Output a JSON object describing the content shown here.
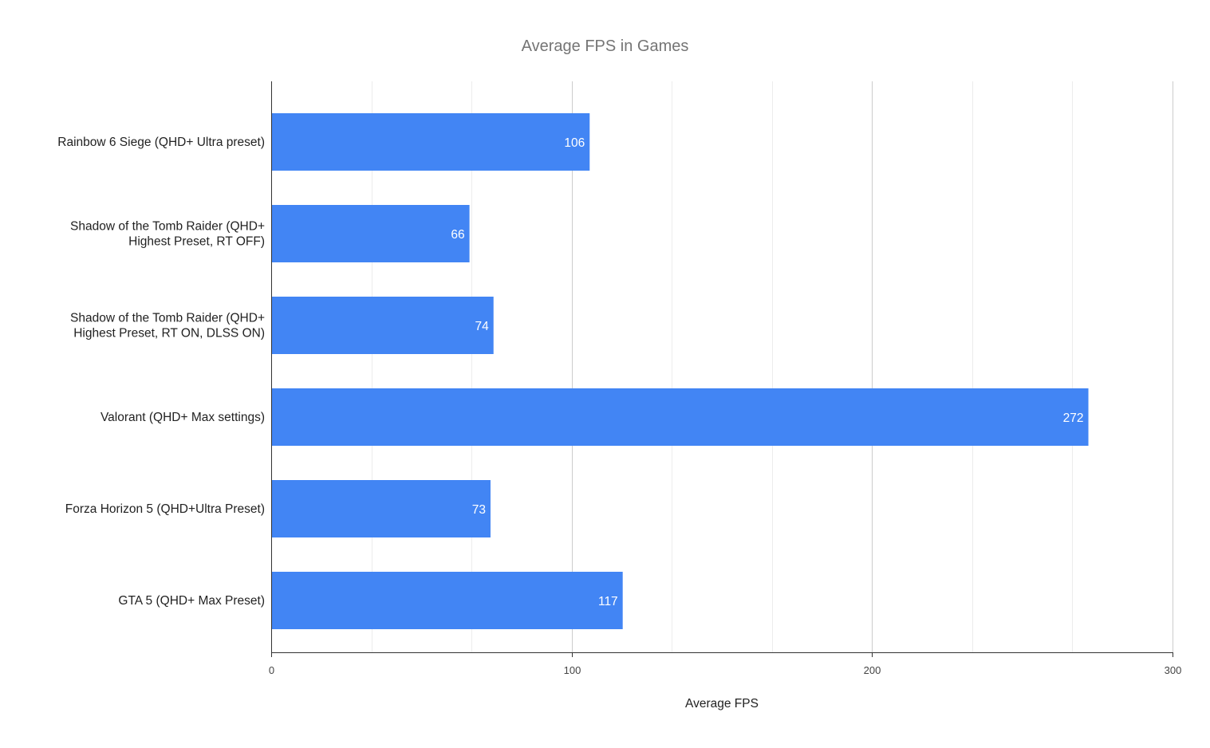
{
  "chart_data": {
    "type": "bar",
    "orientation": "horizontal",
    "title": "Average FPS in Games",
    "xlabel": "Average FPS",
    "ylabel": "",
    "categories": [
      [
        "Rainbow 6 Siege (QHD+ Ultra preset)"
      ],
      [
        "Shadow of the Tomb Raider (QHD+",
        "Highest Preset, RT OFF)"
      ],
      [
        "Shadow of the Tomb Raider (QHD+",
        "Highest Preset, RT ON, DLSS ON)"
      ],
      [
        "Valorant (QHD+ Max settings)"
      ],
      [
        "Forza Horizon 5 (QHD+Ultra Preset)"
      ],
      [
        "GTA 5 (QHD+ Max Preset)"
      ]
    ],
    "values": [
      106,
      66,
      74,
      272,
      73,
      117
    ],
    "value_labels": [
      "106",
      "66",
      "74",
      "272",
      "73",
      "117"
    ],
    "xlim": [
      0,
      300
    ],
    "major_ticks": [
      0,
      100,
      200,
      300
    ],
    "major_tick_labels": [
      "0",
      "100",
      "200",
      "300"
    ],
    "minor_gridlines": [
      33.33,
      66.67,
      133.33,
      166.67,
      233.33,
      266.67
    ],
    "bar_color": "#4285f4",
    "grid": true,
    "legend": "none"
  }
}
